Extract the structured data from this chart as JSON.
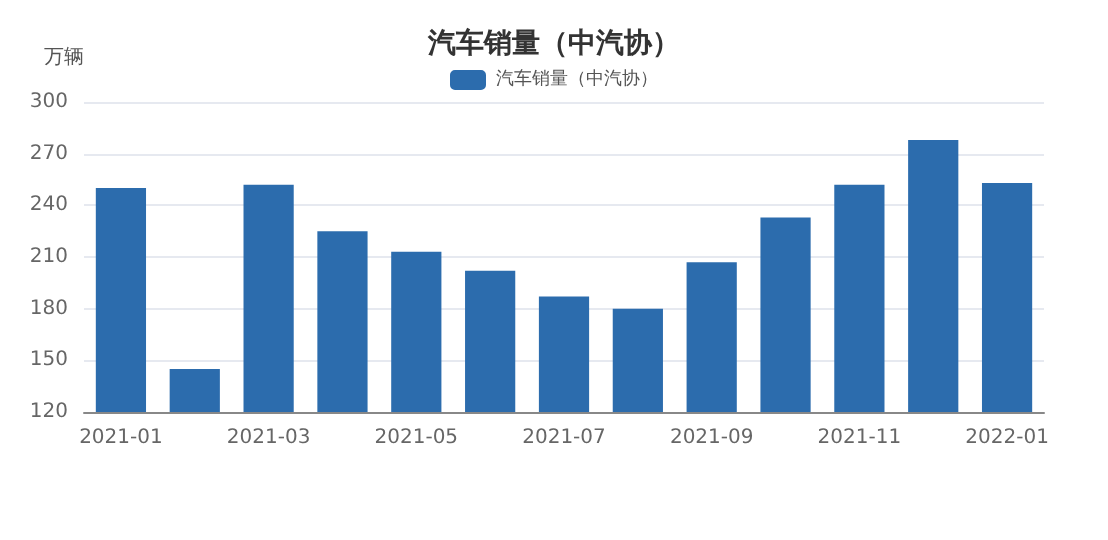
{
  "chart_data": {
    "type": "bar",
    "title": "汽车销量（中汽协）",
    "ylabel": "万辆",
    "categories": [
      "2021-01",
      null,
      "2021-03",
      null,
      "2021-05",
      null,
      "2021-07",
      null,
      "2021-09",
      null,
      "2021-11",
      null,
      "2022-01"
    ],
    "series": [
      {
        "name": "汽车销量（中汽协）",
        "color": "#2c6cad",
        "values": [
          250,
          145,
          252,
          225,
          213,
          202,
          187,
          180,
          207,
          233,
          252,
          278,
          253
        ]
      }
    ],
    "ylim": [
      120,
      300
    ],
    "yticks": [
      120,
      150,
      180,
      210,
      240,
      270,
      300
    ],
    "grid": "y",
    "legend": "top"
  }
}
